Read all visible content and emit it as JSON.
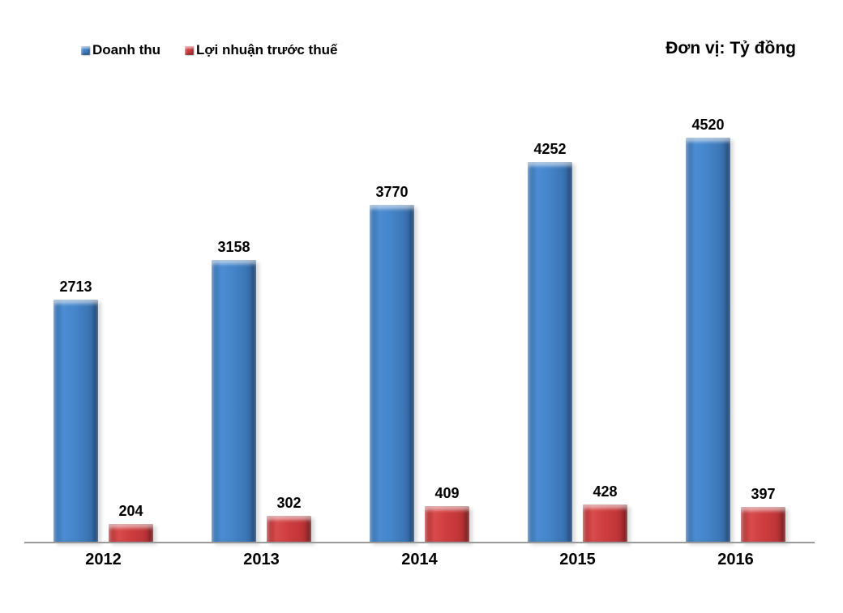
{
  "unit_label": "Đơn vị: Tỷ đồng",
  "legend": {
    "items": [
      {
        "label": "Doanh thu",
        "color": "#3E7CC1"
      },
      {
        "label": "Lợi nhuận trước thuế",
        "color": "#CB3A3C"
      }
    ]
  },
  "chart_data": {
    "type": "bar",
    "title": "",
    "unit_annotation": "Đơn vị: Tỷ đồng",
    "categories": [
      "2012",
      "2013",
      "2014",
      "2015",
      "2016"
    ],
    "series": [
      {
        "name": "Doanh thu",
        "color": "#3E7CC1",
        "values": [
          2713,
          3158,
          3770,
          4252,
          4520
        ]
      },
      {
        "name": "Lợi nhuận trước thuế",
        "color": "#CB3A3C",
        "values": [
          204,
          302,
          409,
          428,
          397
        ]
      }
    ],
    "xlabel": "",
    "ylabel": "",
    "ylim": [
      0,
      5200
    ],
    "grid": false,
    "data_labels": true,
    "legend_position": "top-left"
  }
}
